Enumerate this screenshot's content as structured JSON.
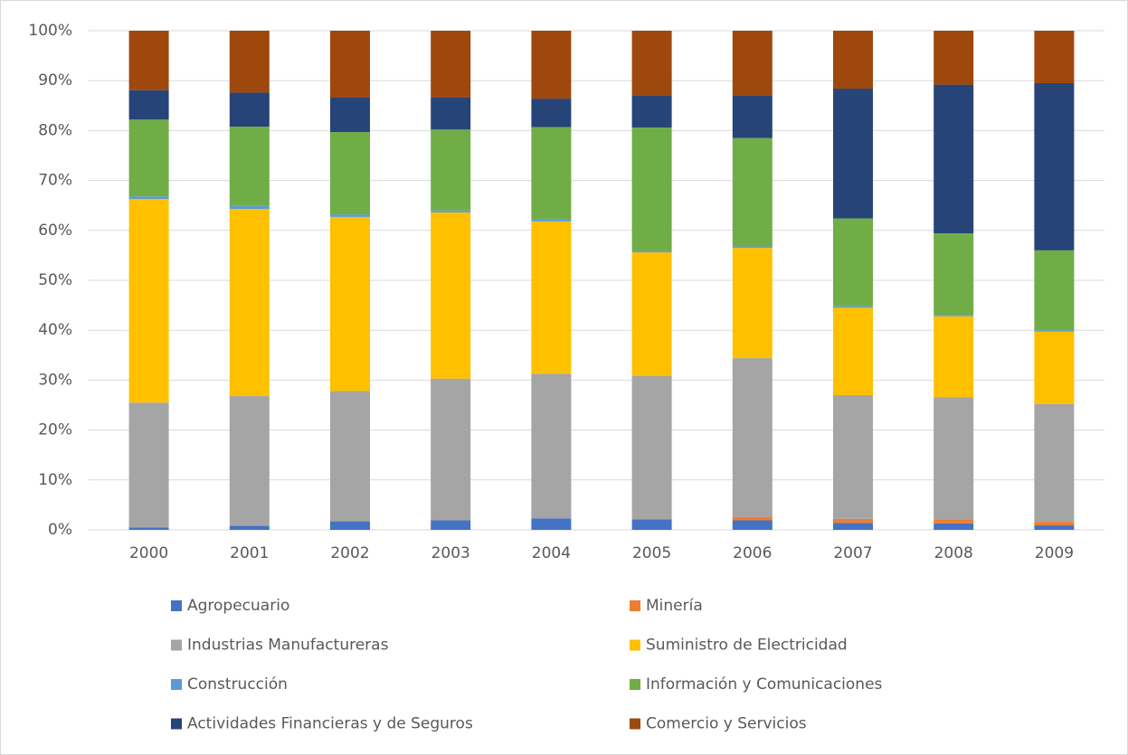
{
  "chart_data": {
    "type": "stacked_bar",
    "categories": [
      "2000",
      "2001",
      "2002",
      "2003",
      "2004",
      "2005",
      "2006",
      "2007",
      "2008",
      "2009"
    ],
    "series": [
      {
        "name": "Agropecuario",
        "color": "#4472c4",
        "values": [
          0.5,
          0.8,
          1.7,
          1.9,
          2.3,
          2.1,
          1.9,
          1.4,
          1.3,
          0.9
        ]
      },
      {
        "name": "Minería",
        "color": "#ed7d31",
        "values": [
          0,
          0,
          0.1,
          0,
          0,
          0,
          0.7,
          0.8,
          0.8,
          0.7
        ]
      },
      {
        "name": "Industrias Manufactureras",
        "color": "#a5a5a5",
        "values": [
          25.0,
          26.0,
          26.0,
          28.4,
          29.0,
          28.7,
          31.8,
          24.8,
          24.5,
          23.6
        ]
      },
      {
        "name": "Suministro de Electricidad",
        "color": "#ffc000",
        "values": [
          40.8,
          37.5,
          34.9,
          33.3,
          30.5,
          24.8,
          22.1,
          17.5,
          16.2,
          14.5
        ]
      },
      {
        "name": "Construcción",
        "color": "#5b9bd5",
        "values": [
          0.5,
          0.6,
          0.5,
          0.4,
          0.5,
          0.3,
          0.3,
          0.3,
          0.3,
          0.3
        ]
      },
      {
        "name": "Información y Comunicaciones",
        "color": "#70ad47",
        "values": [
          15.4,
          15.9,
          16.5,
          16.2,
          18.4,
          24.7,
          21.7,
          17.6,
          16.3,
          16.0
        ]
      },
      {
        "name": "Actividades Financieras y de Seguros",
        "color": "#264478",
        "values": [
          5.9,
          6.8,
          6.9,
          6.4,
          5.7,
          6.5,
          8.6,
          26.0,
          29.8,
          33.5
        ]
      },
      {
        "name": "Comercio y Servicios",
        "color": "#9e480e",
        "values": [
          11.9,
          12.4,
          13.4,
          13.4,
          13.6,
          12.9,
          12.9,
          11.6,
          10.8,
          10.5
        ]
      }
    ],
    "ylim": [
      0,
      100
    ],
    "yticks": [
      {
        "value": 0,
        "label": "0%"
      },
      {
        "value": 10,
        "label": "10%"
      },
      {
        "value": 20,
        "label": "20%"
      },
      {
        "value": 30,
        "label": "30%"
      },
      {
        "value": 40,
        "label": "40%"
      },
      {
        "value": 50,
        "label": "50%"
      },
      {
        "value": 60,
        "label": "60%"
      },
      {
        "value": 70,
        "label": "70%"
      },
      {
        "value": 80,
        "label": "80%"
      },
      {
        "value": 90,
        "label": "90%"
      },
      {
        "value": 100,
        "label": "100%"
      }
    ],
    "grid": true,
    "legend": "bottom"
  }
}
